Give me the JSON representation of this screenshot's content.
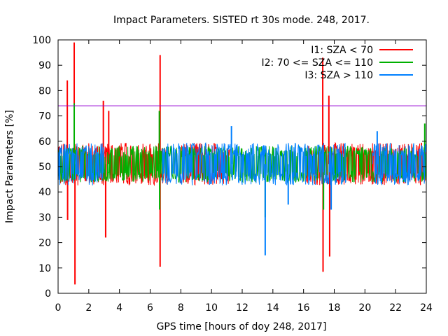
{
  "chart_data": {
    "type": "line",
    "title": "Impact Parameters. SISTED rt 30s mode. 248, 2017.",
    "xlabel": "GPS time [hours of doy 248, 2017]",
    "ylabel": "Impact Parameters [%]",
    "xlim": [
      0,
      24
    ],
    "ylim": [
      0,
      100
    ],
    "xticks": [
      0,
      2,
      4,
      6,
      8,
      10,
      12,
      14,
      16,
      18,
      20,
      22,
      24
    ],
    "yticks": [
      0,
      10,
      20,
      30,
      40,
      50,
      60,
      70,
      80,
      90,
      100
    ],
    "xtick_labels": [
      "0",
      "2",
      "4",
      "6",
      "8",
      "10",
      "12",
      "14",
      "16",
      "18",
      "20",
      "22",
      "24"
    ],
    "ytick_labels": [
      "0",
      "10",
      "20",
      "30",
      "40",
      "50",
      "60",
      "70",
      "80",
      "90",
      "100"
    ],
    "grid": false,
    "legend_position": "top-right",
    "threshold": {
      "value": 74,
      "color": "#9400d3"
    },
    "series": [
      {
        "name": "I1: SZA < 70",
        "color": "#ff0000",
        "center": 51,
        "band": [
          44,
          58
        ],
        "active_ranges": [
          [
            0,
            7.2
          ],
          [
            8,
            11.2
          ],
          [
            16.2,
            24
          ]
        ],
        "spikes": [
          {
            "x": 0.6,
            "y": 84
          },
          {
            "x": 0.62,
            "y": 29
          },
          {
            "x": 1.05,
            "y": 99
          },
          {
            "x": 1.1,
            "y": 3.5
          },
          {
            "x": 2.95,
            "y": 76
          },
          {
            "x": 3.1,
            "y": 22
          },
          {
            "x": 3.3,
            "y": 72
          },
          {
            "x": 6.65,
            "y": 94
          },
          {
            "x": 6.65,
            "y": 10.5
          },
          {
            "x": 17.25,
            "y": 93
          },
          {
            "x": 17.27,
            "y": 8.5
          },
          {
            "x": 17.65,
            "y": 78
          },
          {
            "x": 17.7,
            "y": 14.5
          }
        ]
      },
      {
        "name": "I2: 70 <= SZA <= 110",
        "color": "#00b000",
        "center": 51,
        "band": [
          45,
          57
        ],
        "active_ranges": [
          [
            0,
            24
          ]
        ],
        "spikes": [
          {
            "x": 1.05,
            "y": 75
          },
          {
            "x": 6.6,
            "y": 72
          },
          {
            "x": 6.62,
            "y": 33
          },
          {
            "x": 13.5,
            "y": 30
          },
          {
            "x": 17.3,
            "y": 33
          },
          {
            "x": 23.9,
            "y": 67
          }
        ]
      },
      {
        "name": "I3: SZA > 110",
        "color": "#0080ff",
        "center": 51,
        "band": [
          44,
          58
        ],
        "active_ranges": [
          [
            0,
            3
          ],
          [
            6.8,
            18.8
          ],
          [
            20.5,
            24
          ]
        ],
        "spikes": [
          {
            "x": 13.5,
            "y": 15
          },
          {
            "x": 11.3,
            "y": 66
          },
          {
            "x": 15,
            "y": 35
          },
          {
            "x": 17.8,
            "y": 33
          },
          {
            "x": 20.8,
            "y": 64
          }
        ]
      }
    ]
  }
}
